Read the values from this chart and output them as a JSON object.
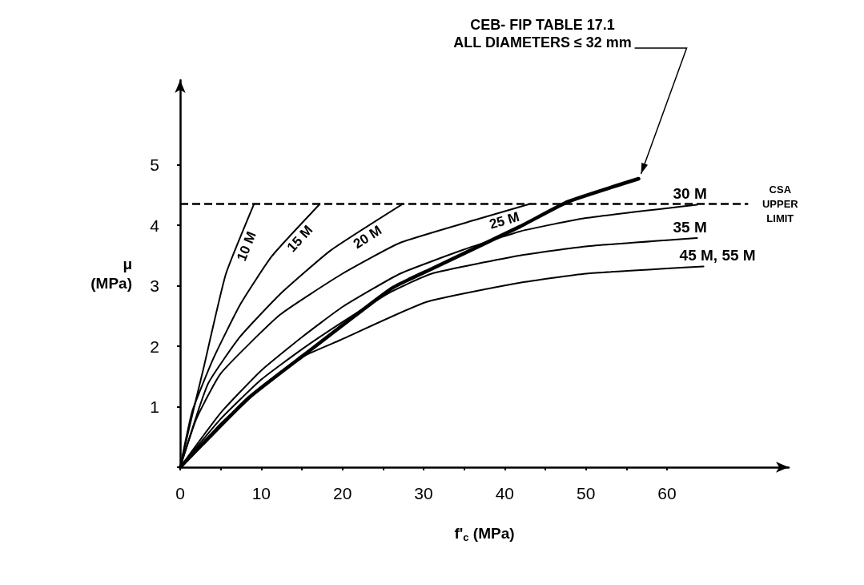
{
  "chart_data": {
    "type": "line",
    "xlabel": "f'$_{c}$ (MPa)",
    "ylabel": "μ\n(MPa)",
    "xlim": [
      0,
      75
    ],
    "ylim": [
      0,
      6.4
    ],
    "xticks": [
      0,
      {
        "value": 5,
        "label": null
      },
      10,
      {
        "value": 15,
        "label": null
      },
      20,
      {
        "value": 25,
        "label": null
      },
      30,
      {
        "value": 35,
        "label": null
      },
      40,
      {
        "value": 45,
        "label": null
      },
      50,
      {
        "value": 55,
        "label": null
      },
      60
    ],
    "yticks": [
      {
        "value": 0,
        "label": null
      },
      1,
      2,
      3,
      4,
      5
    ],
    "grid": false,
    "legend": false,
    "marker": "none",
    "line_style": "solid",
    "series": [
      {
        "name": "10 M",
        "color": "#000000",
        "x": [
          0,
          1.2,
          2.8,
          5.6,
          9.1
        ],
        "values": [
          0,
          0.7,
          1.59,
          3.18,
          4.35
        ]
      },
      {
        "name": "15 M",
        "color": "#000000",
        "x": [
          0,
          1.5,
          4.1,
          7.4,
          11.3,
          17.2
        ],
        "values": [
          0,
          0.93,
          1.8,
          2.69,
          3.49,
          4.35
        ]
      },
      {
        "name": "20 M",
        "color": "#000000",
        "x": [
          0,
          3.4,
          7.4,
          12.3,
          18.5,
          27.4
        ],
        "values": [
          0,
          1.37,
          2.16,
          2.86,
          3.58,
          4.35
        ]
      },
      {
        "name": "25 M",
        "color": "#000000",
        "x": [
          0,
          2,
          5,
          12.3,
          20,
          27.1,
          36.9,
          43
        ],
        "values": [
          0,
          0.8,
          1.55,
          2.52,
          3.2,
          3.71,
          4.11,
          4.35
        ]
      },
      {
        "name": "30 M",
        "color": "#000000",
        "x": [
          0,
          5,
          10,
          15,
          20,
          27.1,
          35,
          41.9,
          50,
          63.7
        ],
        "values": [
          0,
          0.9,
          1.6,
          2.15,
          2.65,
          3.2,
          3.6,
          3.9,
          4.12,
          4.34
        ]
      },
      {
        "name": "35 M",
        "color": "#000000",
        "x": [
          0,
          5,
          10,
          15,
          20,
          26,
          31,
          41.9,
          50,
          63.7
        ],
        "values": [
          0,
          0.8,
          1.45,
          1.95,
          2.4,
          2.9,
          3.2,
          3.5,
          3.65,
          3.79
        ]
      },
      {
        "name": "45 M, 55 M",
        "color": "#000000",
        "x": [
          0,
          5,
          10,
          15.3,
          19.7,
          30.3,
          41.9,
          50,
          64.5
        ],
        "values": [
          0,
          0.72,
          1.33,
          1.84,
          2.1,
          2.73,
          3.05,
          3.2,
          3.32
        ]
      },
      {
        "color": "#000000",
        "x": [
          0,
          8.4,
          15.3,
          26.1,
          31,
          41.9,
          47.8,
          56.5
        ],
        "values": [
          0,
          1.14,
          1.86,
          2.96,
          3.28,
          3.98,
          4.39,
          4.77
        ]
      }
    ],
    "ref_lines": [
      {
        "axis": "y",
        "value": 4.35,
        "label": "CSA\nUPPER\nLIMIT",
        "line_style": "dashed",
        "color": "#000000"
      }
    ],
    "annotations": [
      {
        "text": "CEB- FIP TABLE 17.1\nALL DIAMETERS ≤ 32 mm",
        "x": 56.5,
        "y": 4.77
      }
    ]
  }
}
